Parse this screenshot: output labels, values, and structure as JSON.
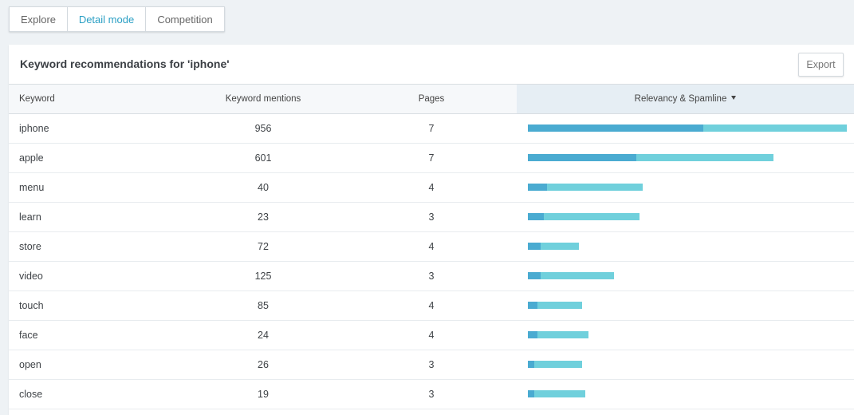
{
  "tabs": [
    {
      "label": "Explore",
      "active": false
    },
    {
      "label": "Detail mode",
      "active": true
    },
    {
      "label": "Competition",
      "active": false
    }
  ],
  "panel": {
    "title": "Keyword recommendations for 'iphone'",
    "export_label": "Export"
  },
  "table": {
    "columns": {
      "keyword": "Keyword",
      "mentions": "Keyword mentions",
      "pages": "Pages",
      "relevancy": "Relevancy & Spamline"
    },
    "sort_icon": "caret-down-icon",
    "colors": {
      "relevancy": "#4aabd1",
      "spamline": "#70d0dc"
    },
    "rows": [
      {
        "keyword": "iphone",
        "mentions": "956",
        "pages": "7",
        "relevancy": 0.55,
        "spamline": 0.45
      },
      {
        "keyword": "apple",
        "mentions": "601",
        "pages": "7",
        "relevancy": 0.34,
        "spamline": 0.43
      },
      {
        "keyword": "menu",
        "mentions": "40",
        "pages": "4",
        "relevancy": 0.06,
        "spamline": 0.3
      },
      {
        "keyword": "learn",
        "mentions": "23",
        "pages": "3",
        "relevancy": 0.05,
        "spamline": 0.3
      },
      {
        "keyword": "store",
        "mentions": "72",
        "pages": "4",
        "relevancy": 0.04,
        "spamline": 0.12
      },
      {
        "keyword": "video",
        "mentions": "125",
        "pages": "3",
        "relevancy": 0.04,
        "spamline": 0.23
      },
      {
        "keyword": "touch",
        "mentions": "85",
        "pages": "4",
        "relevancy": 0.03,
        "spamline": 0.14
      },
      {
        "keyword": "face",
        "mentions": "24",
        "pages": "4",
        "relevancy": 0.03,
        "spamline": 0.16
      },
      {
        "keyword": "open",
        "mentions": "26",
        "pages": "3",
        "relevancy": 0.02,
        "spamline": 0.15
      },
      {
        "keyword": "close",
        "mentions": "19",
        "pages": "3",
        "relevancy": 0.02,
        "spamline": 0.16
      }
    ]
  }
}
